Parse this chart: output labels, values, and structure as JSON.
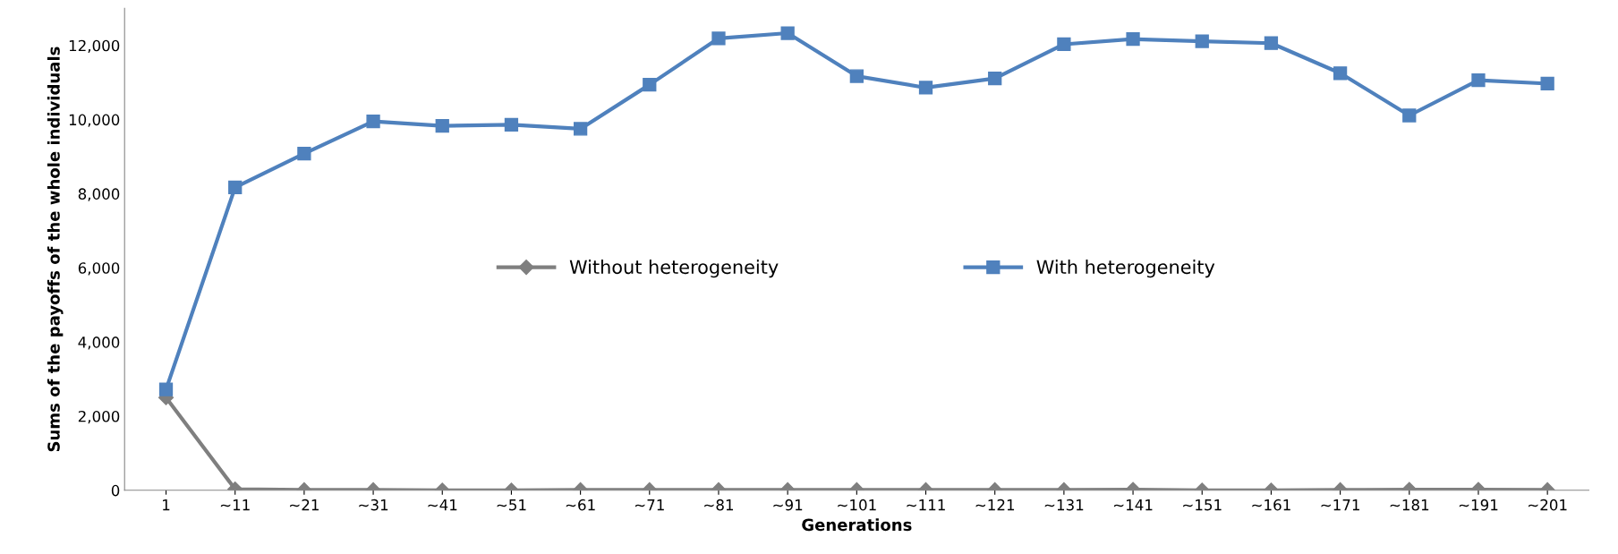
{
  "chart_data": {
    "type": "line",
    "xlabel": "Generations",
    "ylabel": "Sums of the payoffs of the whole individuals",
    "categories": [
      "1",
      "~11",
      "~21",
      "~31",
      "~41",
      "~51",
      "~61",
      "~71",
      "~81",
      "~91",
      "~101",
      "~111",
      "~121",
      "~131",
      "~141",
      "~151",
      "~161",
      "~171",
      "~181",
      "~191",
      "~201"
    ],
    "series": [
      {
        "name": "Without heterogeneity",
        "color": "#7f7f7f",
        "marker": "diamond",
        "values": [
          2500,
          30,
          10,
          10,
          0,
          0,
          10,
          10,
          10,
          10,
          10,
          10,
          10,
          10,
          20,
          0,
          0,
          10,
          20,
          20,
          10
        ]
      },
      {
        "name": "With heterogeneity",
        "color": "#4f81bd",
        "marker": "square",
        "values": [
          2720,
          8170,
          9080,
          9950,
          9830,
          9860,
          9750,
          10940,
          12190,
          12330,
          11170,
          10860,
          11110,
          12030,
          12170,
          12110,
          12060,
          11250,
          10110,
          11060,
          10970
        ]
      }
    ],
    "ylim": [
      0,
      13000
    ],
    "yticks": [
      0,
      {
        "value": 2000,
        "label": "2,000"
      },
      {
        "value": 4000,
        "label": "4,000"
      },
      {
        "value": 6000,
        "label": "6,000"
      },
      {
        "value": 8000,
        "label": "8,000"
      },
      {
        "value": 10000,
        "label": "10,000"
      },
      {
        "value": 12000,
        "label": "12,000"
      }
    ],
    "grid": false,
    "legend": "center",
    "line_style": "solid"
  }
}
